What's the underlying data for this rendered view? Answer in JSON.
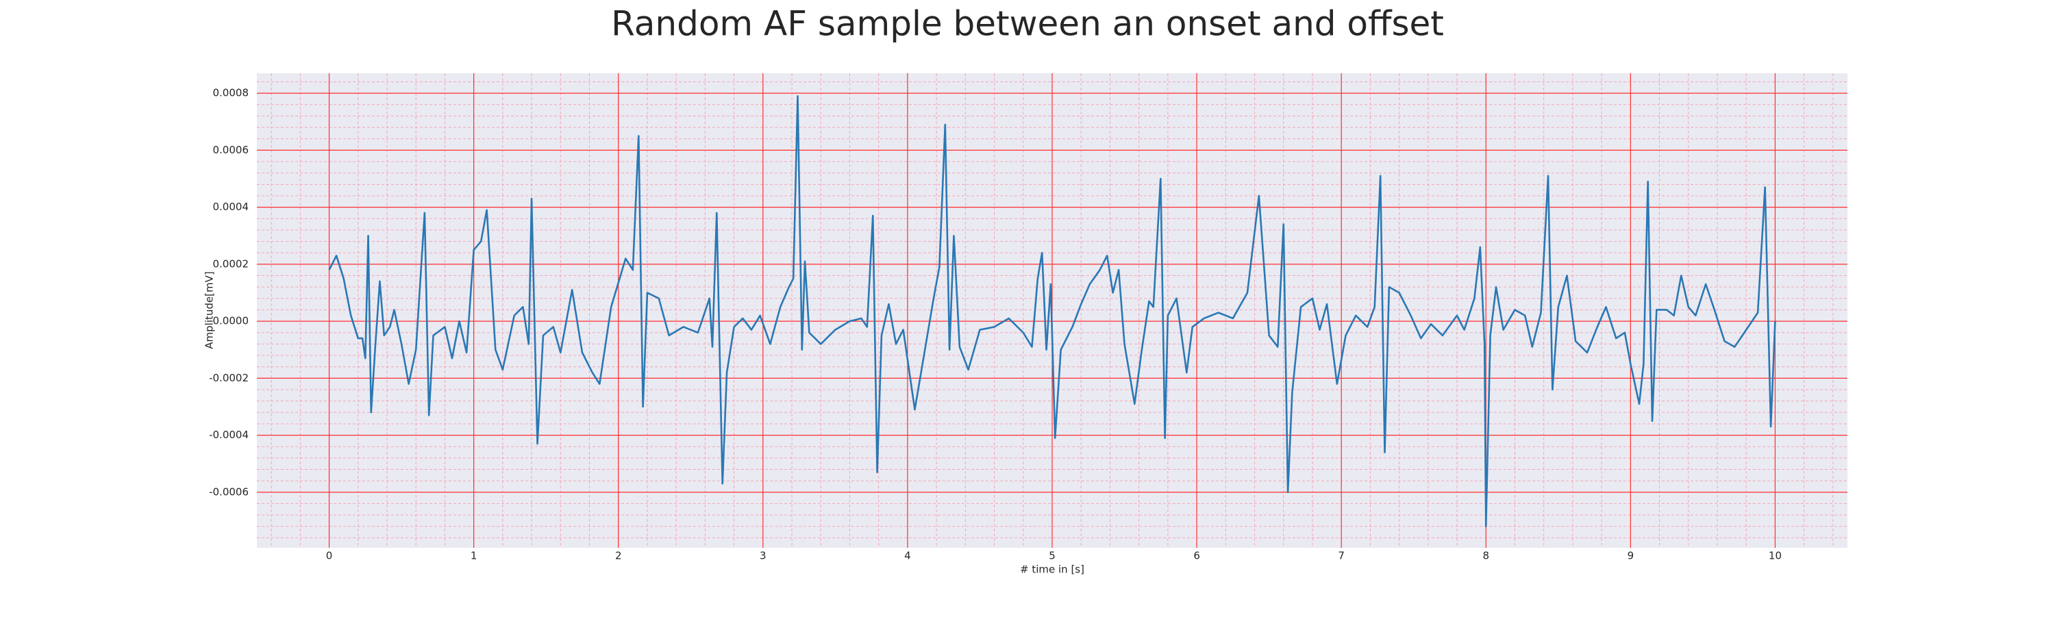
{
  "chart_data": {
    "type": "line",
    "title": "Random AF sample between an onset and offset",
    "xlabel": "# time in [s]",
    "ylabel": "Amplitude[mV]",
    "x": [
      0,
      0.05,
      0.1,
      0.15,
      0.2,
      0.23,
      0.25,
      0.27,
      0.29,
      0.32,
      0.35,
      0.38,
      0.42,
      0.45,
      0.5,
      0.55,
      0.6,
      0.66,
      0.69,
      0.72,
      0.8,
      0.85,
      0.9,
      0.95,
      1,
      1.05,
      1.09,
      1.15,
      1.2,
      1.28,
      1.34,
      1.38,
      1.4,
      1.44,
      1.48,
      1.55,
      1.6,
      1.68,
      1.75,
      1.82,
      1.87,
      1.95,
      2.05,
      2.1,
      2.14,
      2.17,
      2.2,
      2.28,
      2.35,
      2.45,
      2.55,
      2.63,
      2.65,
      2.68,
      2.72,
      2.75,
      2.8,
      2.86,
      2.92,
      2.98,
      3.05,
      3.12,
      3.18,
      3.21,
      3.24,
      3.27,
      3.29,
      3.32,
      3.4,
      3.5,
      3.6,
      3.68,
      3.72,
      3.76,
      3.79,
      3.82,
      3.87,
      3.92,
      3.97,
      4.05,
      4.12,
      4.18,
      4.22,
      4.26,
      4.29,
      4.32,
      4.36,
      4.42,
      4.5,
      4.6,
      4.7,
      4.8,
      4.86,
      4.9,
      4.93,
      4.96,
      4.99,
      5.02,
      5.06,
      5.14,
      5.2,
      5.26,
      5.33,
      5.38,
      5.42,
      5.46,
      5.5,
      5.57,
      5.62,
      5.67,
      5.7,
      5.75,
      5.78,
      5.8,
      5.86,
      5.93,
      5.97,
      6.05,
      6.15,
      6.25,
      6.35,
      6.43,
      6.5,
      6.56,
      6.6,
      6.63,
      6.66,
      6.72,
      6.8,
      6.85,
      6.9,
      6.97,
      7.03,
      7.1,
      7.18,
      7.23,
      7.27,
      7.3,
      7.33,
      7.4,
      7.48,
      7.55,
      7.62,
      7.7,
      7.8,
      7.85,
      7.92,
      7.96,
      7.99,
      8,
      8.03,
      8.07,
      8.12,
      8.2,
      8.27,
      8.32,
      8.38,
      8.43,
      8.46,
      8.5,
      8.56,
      8.62,
      8.7,
      8.77,
      8.83,
      8.9,
      8.96,
      9,
      9.06,
      9.09,
      9.12,
      9.15,
      9.18,
      9.25,
      9.3,
      9.35,
      9.4,
      9.45,
      9.52,
      9.58,
      9.65,
      9.72,
      9.8,
      9.88,
      9.93,
      9.97,
      10
    ],
    "series": [
      {
        "color": "#2a78b4",
        "values": [
          0.00018,
          0.00023,
          0.00015,
          2e-05,
          -6e-05,
          -6e-05,
          -0.00013,
          0.0003,
          -0.00032,
          -8e-05,
          0.00014,
          -5e-05,
          -2e-05,
          4e-05,
          -8e-05,
          -0.00022,
          -0.0001,
          0.00038,
          -0.00033,
          -5e-05,
          -2e-05,
          -0.00013,
          0,
          -0.00011,
          0.00025,
          0.00028,
          0.00039,
          -0.0001,
          -0.00017,
          2e-05,
          5e-05,
          -8e-05,
          0.00043,
          -0.00043,
          -5e-05,
          -2e-05,
          -0.00011,
          0.00011,
          -0.00011,
          -0.00018,
          -0.00022,
          5e-05,
          0.00022,
          0.00018,
          0.00065,
          -0.0003,
          0.0001,
          8e-05,
          -5e-05,
          -2e-05,
          -4e-05,
          8e-05,
          -9e-05,
          0.00038,
          -0.00057,
          -0.00018,
          -2e-05,
          1e-05,
          -3e-05,
          2e-05,
          -8e-05,
          5e-05,
          0.00012,
          0.00015,
          0.00079,
          -0.0001,
          0.00021,
          -4e-05,
          -8e-05,
          -3e-05,
          0,
          1e-05,
          -2e-05,
          0.00037,
          -0.00053,
          -5e-05,
          6e-05,
          -8e-05,
          -3e-05,
          -0.00031,
          -0.0001,
          8e-05,
          0.00019,
          0.00069,
          -0.0001,
          0.0003,
          -9e-05,
          -0.00017,
          -3e-05,
          -2e-05,
          1e-05,
          -4e-05,
          -9e-05,
          0.00015,
          0.00024,
          -0.0001,
          0.00013,
          -0.00041,
          -0.0001,
          -2e-05,
          6e-05,
          0.00013,
          0.00018,
          0.00023,
          0.0001,
          0.00018,
          -8e-05,
          -0.00029,
          -0.0001,
          7e-05,
          5e-05,
          0.0005,
          -0.00041,
          2e-05,
          8e-05,
          -0.00018,
          -2e-05,
          1e-05,
          3e-05,
          1e-05,
          0.0001,
          0.00044,
          -5e-05,
          -9e-05,
          0.00034,
          -0.0006,
          -0.00025,
          5e-05,
          8e-05,
          -3e-05,
          6e-05,
          -0.00022,
          -5e-05,
          2e-05,
          -2e-05,
          5e-05,
          0.00051,
          -0.00046,
          0.00012,
          0.0001,
          2e-05,
          -6e-05,
          -1e-05,
          -5e-05,
          2e-05,
          -3e-05,
          8e-05,
          0.00026,
          -8e-05,
          -0.00072,
          -5e-05,
          0.00012,
          -3e-05,
          4e-05,
          2e-05,
          -9e-05,
          3e-05,
          0.00051,
          -0.00024,
          5e-05,
          0.00016,
          -7e-05,
          -0.00011,
          -2e-05,
          5e-05,
          -6e-05,
          -4e-05,
          -0.00015,
          -0.00029,
          -0.00015,
          0.00049,
          -0.00035,
          4e-05,
          4e-05,
          2e-05,
          0.00016,
          5e-05,
          2e-05,
          0.00013,
          4e-05,
          -7e-05,
          -9e-05,
          -3e-05,
          3e-05,
          0.00047,
          -0.00037,
          0
        ]
      }
    ],
    "xlim": [
      -0.5,
      10.5
    ],
    "ylim": [
      -0.000795,
      0.00087
    ],
    "xticks": [
      0,
      1,
      2,
      3,
      4,
      5,
      6,
      7,
      8,
      9,
      10
    ],
    "yticks": [
      -0.0006,
      -0.0004,
      -0.0002,
      {
        "value": 0,
        "label": "0.0000"
      },
      0.0002,
      0.0004,
      0.0006,
      0.0008
    ],
    "grid": true,
    "minor_grid": true
  }
}
